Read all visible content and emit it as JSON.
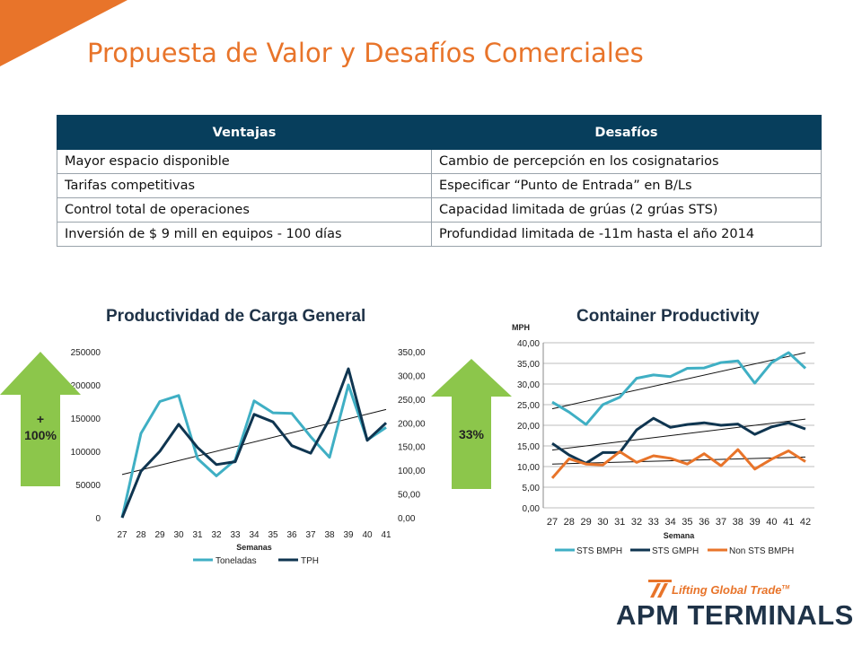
{
  "slide": {
    "title": "Propuesta de Valor y Desafíos Comerciales",
    "accent_color": "#E8742A",
    "header_color": "#073E5C"
  },
  "table": {
    "headers": [
      "Ventajas",
      "Desafíos"
    ],
    "rows": [
      [
        "Mayor espacio disponible",
        "Cambio de percepción en los cosignatarios"
      ],
      [
        "Tarifas competitivas",
        "Especificar “Punto de Entrada” en B/Ls"
      ],
      [
        "Control total de operaciones",
        "Capacidad limitada de grúas (2 grúas STS)"
      ],
      [
        "Inversión de $ 9 mill en equipos -  100 días",
        "Profundidad limitada de -11m hasta el año 2014"
      ]
    ]
  },
  "arrows": {
    "left_label_line1": "+",
    "left_label_line2": "100%",
    "right_label": "33%",
    "color": "#8CC64B",
    "icon": "up-arrow"
  },
  "logo": {
    "tagline": "Lifting Global Trade",
    "tm": "TM",
    "name": "APM TERMINALS"
  },
  "chart_data": [
    {
      "type": "line",
      "title": "Productividad de Carga General",
      "xlabel": "Semanas",
      "categories": [
        "27",
        "28",
        "29",
        "30",
        "31",
        "32",
        "33",
        "34",
        "35",
        "36",
        "37",
        "38",
        "39",
        "40",
        "41"
      ],
      "y_left": {
        "ylim": [
          0,
          250000
        ],
        "ticks": [
          "0",
          "50000",
          "100000",
          "150000",
          "200000",
          "250000"
        ]
      },
      "y_right": {
        "ylim": [
          0,
          350
        ],
        "ticks": [
          "0,00",
          "50,00",
          "100,00",
          "150,00",
          "200,00",
          "250,00",
          "300,00",
          "350,00"
        ]
      },
      "series": [
        {
          "name": "Toneladas",
          "axis": "left",
          "color": "#3FAFC4",
          "values": [
            0,
            127000,
            175000,
            184000,
            89000,
            63000,
            87000,
            176000,
            158000,
            157000,
            122000,
            91000,
            200000,
            117000,
            136000
          ]
        },
        {
          "name": "TPH",
          "axis": "right",
          "color": "#0F3550",
          "values": [
            0,
            98,
            140,
            197,
            148,
            112,
            118,
            218,
            202,
            152,
            136,
            208,
            314,
            163,
            200
          ]
        }
      ],
      "trendline": {
        "axis": "left",
        "start": 65000,
        "end": 163000
      },
      "grid": false,
      "legend": "bottom"
    },
    {
      "type": "line",
      "title": "Container Productivity",
      "ylabel": "MPH",
      "xlabel": "Semana",
      "categories": [
        "27",
        "28",
        "29",
        "30",
        "31",
        "32",
        "33",
        "34",
        "35",
        "36",
        "37",
        "38",
        "39",
        "40",
        "41",
        "42"
      ],
      "ylim": [
        0,
        40
      ],
      "yticks": [
        "0,00",
        "5,00",
        "10,00",
        "15,00",
        "20,00",
        "25,00",
        "30,00",
        "35,00",
        "40,00"
      ],
      "series": [
        {
          "name": "STS BMPH",
          "color": "#3FAFC4",
          "values": [
            25.6,
            23.2,
            20.2,
            25.0,
            26.8,
            31.4,
            32.2,
            31.8,
            33.8,
            33.9,
            35.2,
            35.6,
            30.2,
            35.2,
            37.6,
            33.8
          ]
        },
        {
          "name": "STS GMPH",
          "color": "#0F3550",
          "values": [
            15.6,
            12.8,
            10.8,
            13.4,
            13.4,
            18.9,
            21.7,
            19.5,
            20.2,
            20.6,
            20.0,
            20.3,
            17.8,
            19.6,
            20.6,
            19.1
          ]
        },
        {
          "name": "Non STS BMPH",
          "color": "#E8742A",
          "values": [
            7.2,
            11.9,
            10.6,
            10.4,
            13.6,
            11.0,
            12.6,
            12.0,
            10.6,
            13.1,
            10.2,
            14.1,
            9.4,
            11.8,
            13.8,
            11.2
          ]
        }
      ],
      "trendlines": [
        {
          "start": 24.0,
          "end": 37.6
        },
        {
          "start": 14.0,
          "end": 21.5
        },
        {
          "start": 10.6,
          "end": 12.3
        }
      ],
      "grid": true,
      "legend": "bottom"
    }
  ]
}
